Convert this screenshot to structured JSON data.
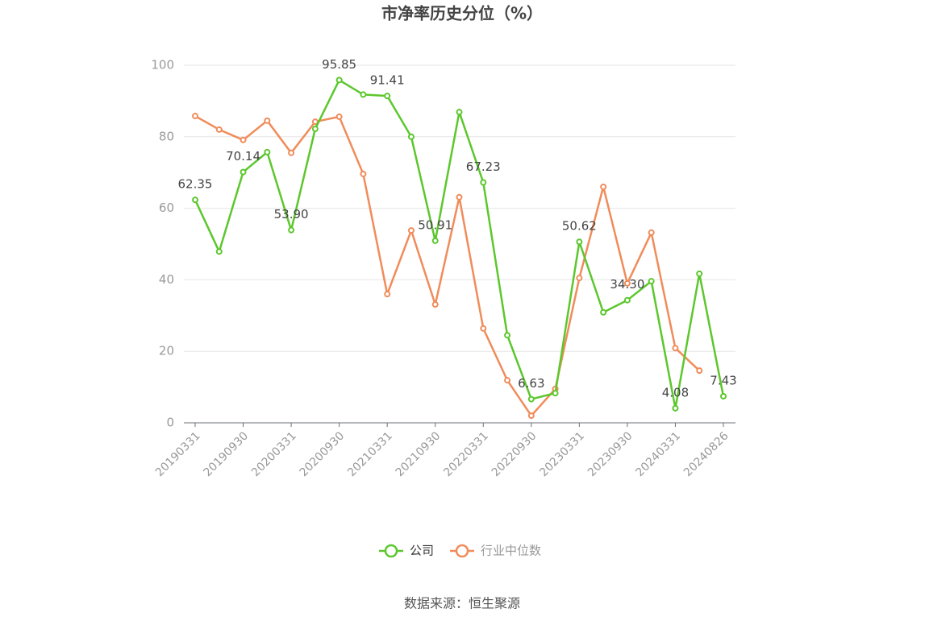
{
  "chart_data": {
    "type": "line",
    "title": "市净率历史分位（%）",
    "source": "数据来源：恒生聚源",
    "categories": [
      "20190331",
      null,
      "20190930",
      null,
      "20200331",
      null,
      "20200930",
      null,
      "20210331",
      null,
      "20210930",
      null,
      "20220331",
      null,
      "20220930",
      null,
      "20230331",
      null,
      "20230930",
      null,
      "20240331",
      null,
      "20240826"
    ],
    "series": [
      {
        "name": "公司",
        "color": "#5cc72d",
        "values": [
          62.35,
          47.9,
          70.14,
          75.7,
          53.9,
          82.2,
          95.85,
          91.8,
          91.41,
          80.0,
          50.91,
          86.9,
          67.23,
          24.5,
          6.63,
          8.3,
          50.62,
          30.9,
          34.3,
          39.6,
          4.08,
          41.7,
          7.43
        ],
        "value_labels": [
          "62.35",
          null,
          "70.14",
          null,
          "53.90",
          null,
          "95.85",
          null,
          "91.41",
          null,
          "50.91",
          null,
          "67.23",
          null,
          "6.63",
          null,
          "50.62",
          null,
          "34.30",
          null,
          "4.08",
          null,
          "7.43"
        ]
      },
      {
        "name": "行业中位数",
        "color": "#f08c5a",
        "values": [
          85.8,
          82.0,
          79.1,
          84.5,
          75.5,
          84.2,
          85.6,
          69.6,
          36.0,
          53.8,
          33.1,
          63.1,
          26.4,
          11.9,
          2.0,
          9.5,
          40.5,
          66.0,
          39.0,
          53.2,
          20.9,
          14.6,
          null
        ]
      }
    ],
    "ylim": [
      0,
      100
    ],
    "yticks": [
      0,
      20,
      40,
      60,
      80,
      100
    ],
    "grid": true
  }
}
